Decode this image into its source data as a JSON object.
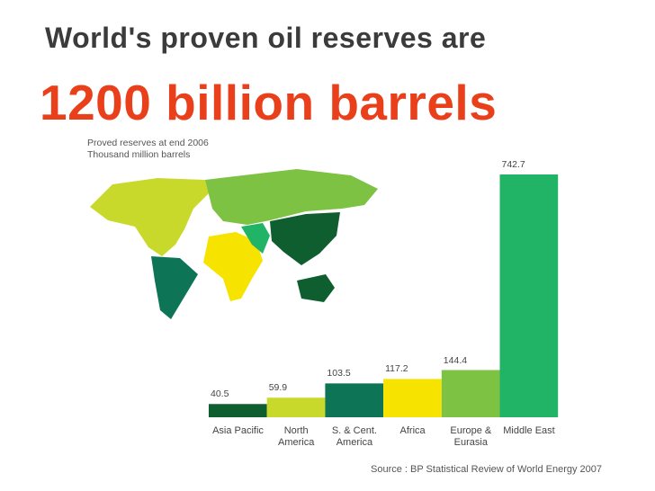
{
  "header": {
    "title": "World's proven oil reserves are",
    "headline": "1200 billion barrels"
  },
  "chart_data": {
    "type": "bar",
    "note": [
      "Proved reserves at end 2006",
      "Thousand million barrels"
    ],
    "categories": [
      "Asia Pacific",
      "North\nAmerica",
      "S. & Cent.\nAmerica",
      "Africa",
      "Europe &\nEurasia",
      "Middle East"
    ],
    "values": [
      40.5,
      59.9,
      103.5,
      117.2,
      144.4,
      742.7
    ],
    "colors": [
      "#0f5e2f",
      "#c9d92b",
      "#0d7556",
      "#f7e300",
      "#7dc242",
      "#22b466"
    ]
  },
  "source": "Source : BP Statistical Review of World Energy 2007"
}
